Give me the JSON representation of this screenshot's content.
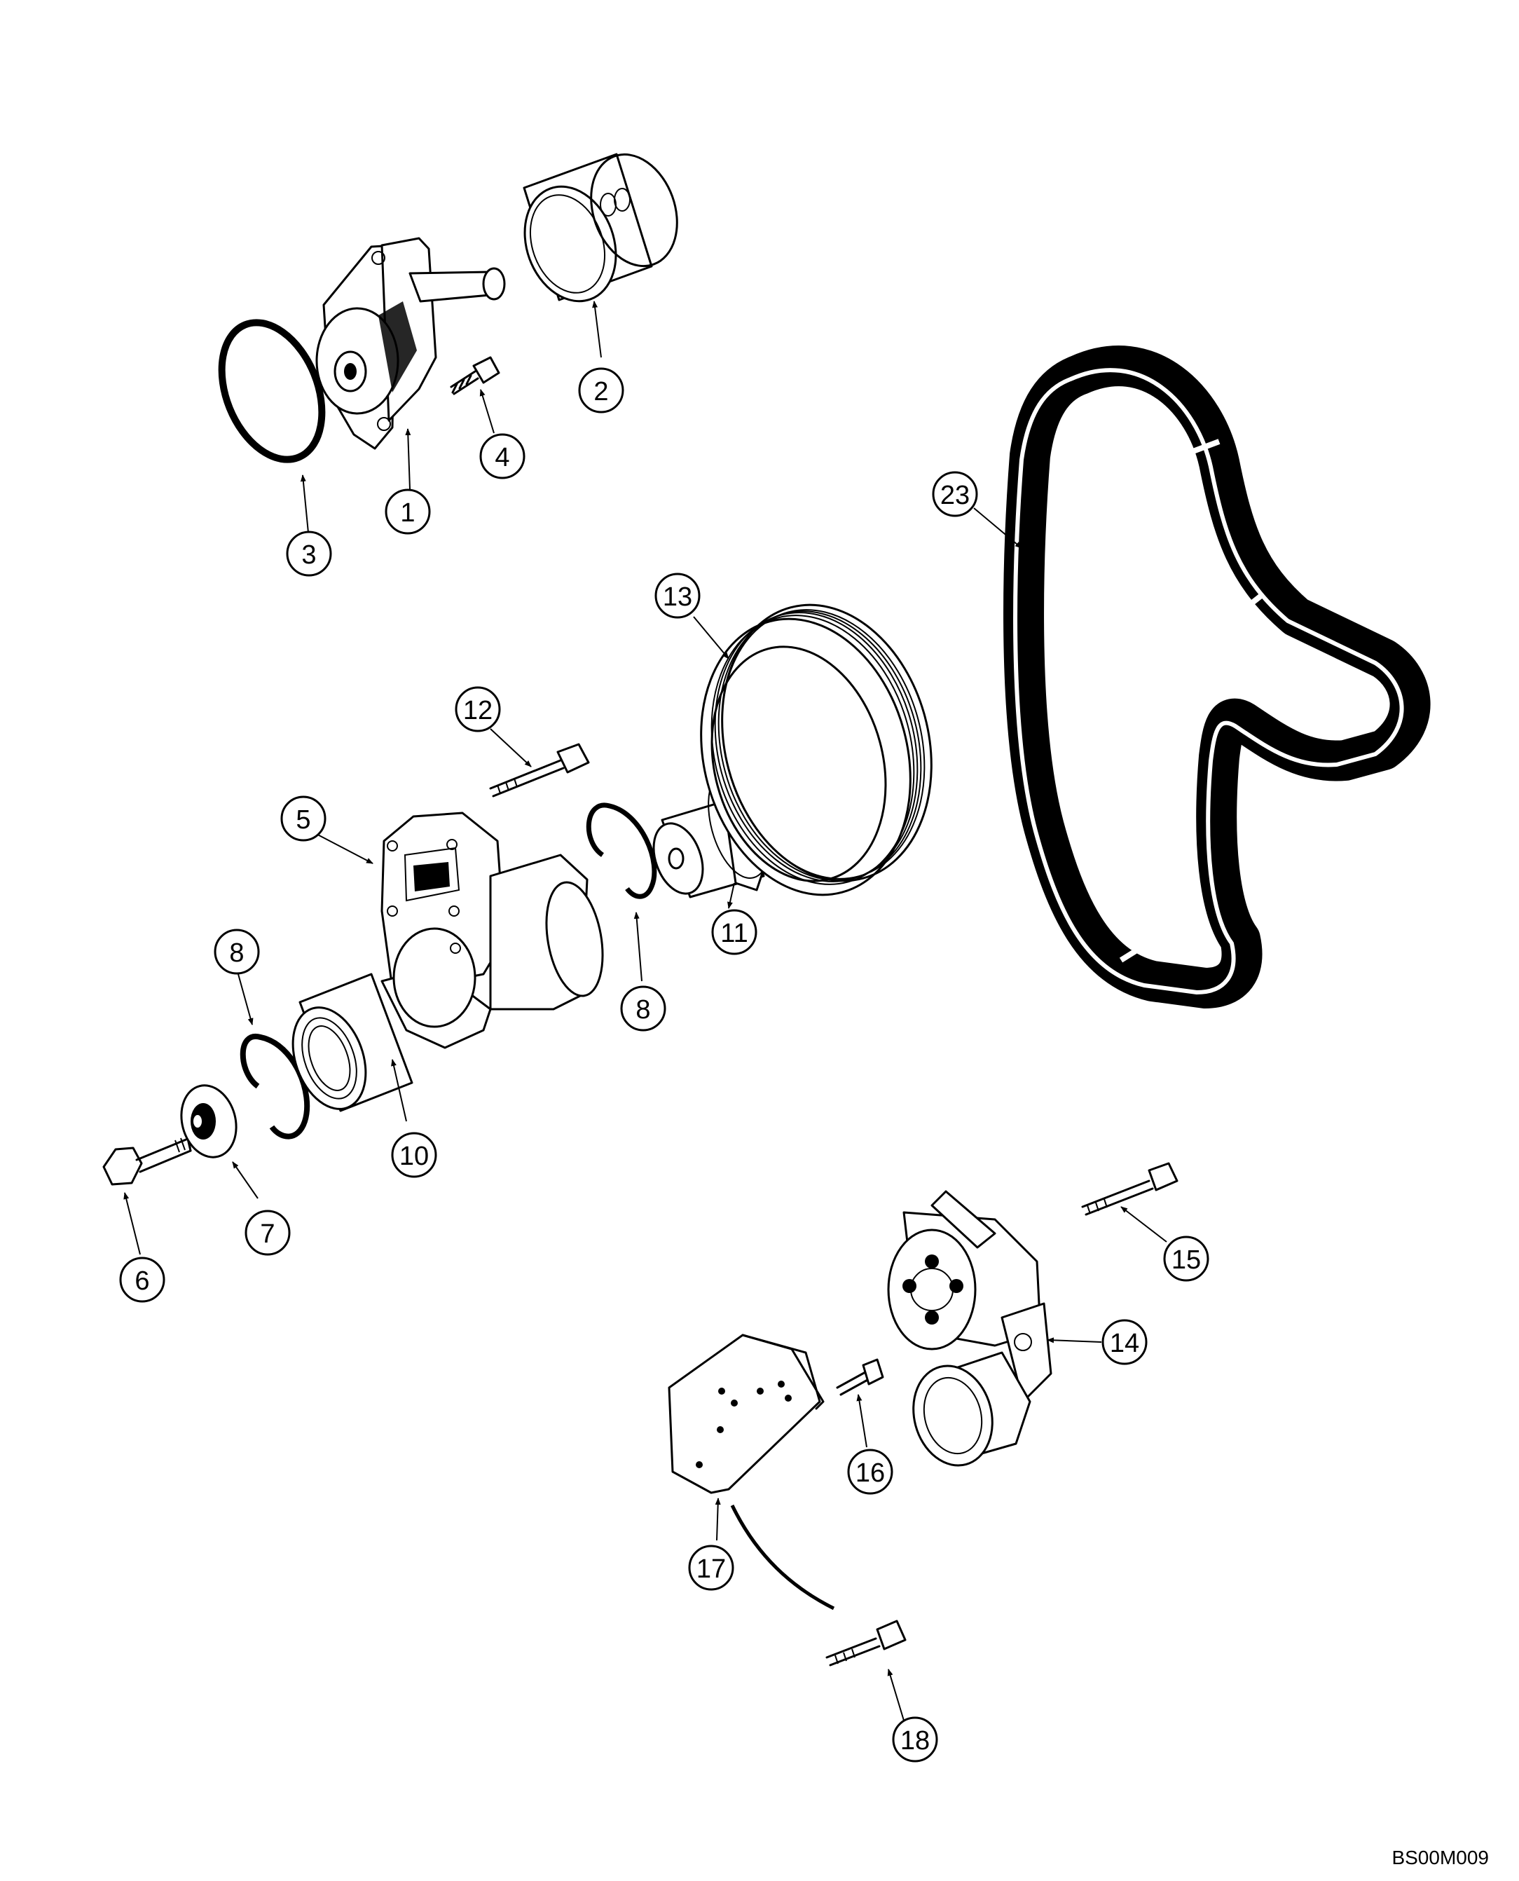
{
  "callouts": [
    "1",
    "2",
    "3",
    "4",
    "5",
    "6",
    "7",
    "8",
    "8",
    "10",
    "11",
    "12",
    "13",
    "14",
    "15",
    "16",
    "17",
    "18",
    "23"
  ],
  "figure_code": "BS00M009"
}
